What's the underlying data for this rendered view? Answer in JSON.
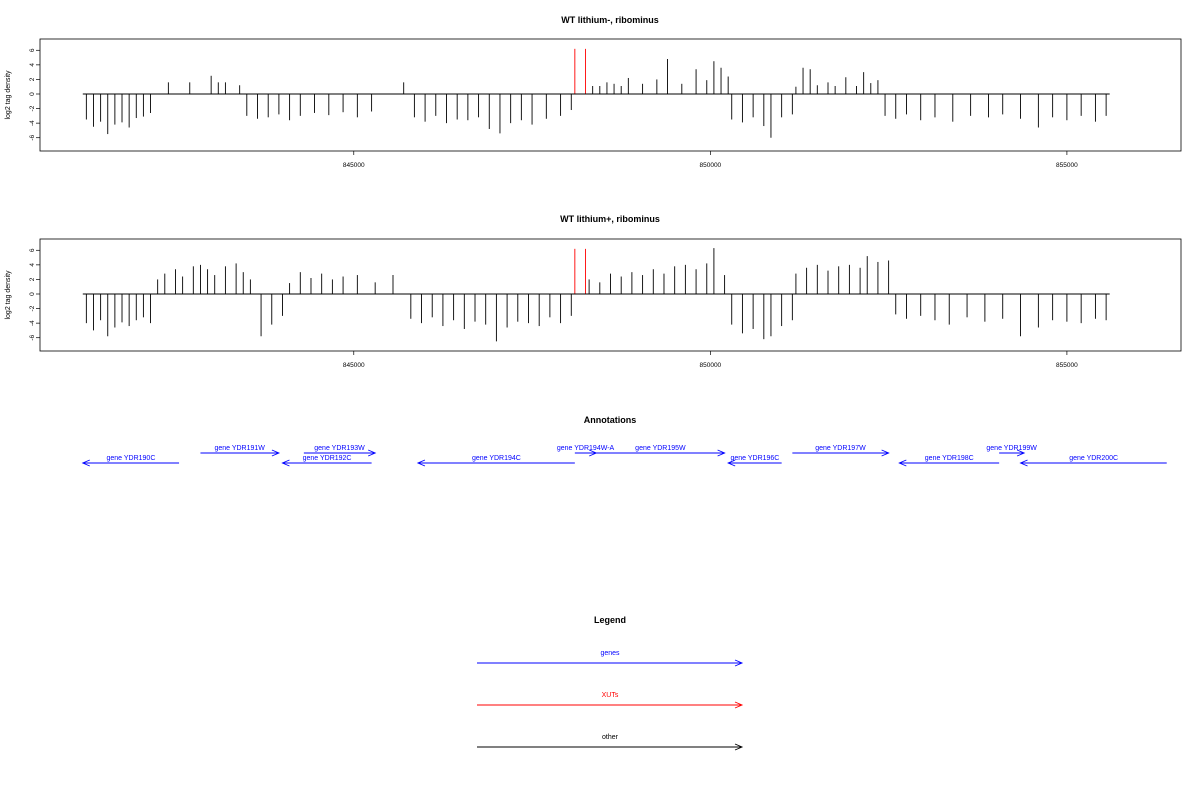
{
  "chart_data": [
    {
      "type": "bar",
      "title": "WT lithium-, ribominus",
      "ylabel": "log2 tag density",
      "xlim": [
        840600,
        856600
      ],
      "ylim": [
        -7,
        7
      ],
      "yticks": [
        6,
        4,
        2,
        0,
        -2,
        -4,
        -6
      ],
      "xticks": [
        845000,
        850000,
        855000
      ],
      "xtick_labels": [
        "845000",
        "850000",
        "855000"
      ],
      "baseline_range": [
        841200,
        855600
      ],
      "series": [
        {
          "color": "#000000",
          "points": [
            [
              841250,
              -3.5
            ],
            [
              841350,
              -4.5
            ],
            [
              841450,
              -3.8
            ],
            [
              841550,
              -5.5
            ],
            [
              841650,
              -4.2
            ],
            [
              841750,
              -3.9
            ],
            [
              841850,
              -4.6
            ],
            [
              841950,
              -3.3
            ],
            [
              842050,
              -3.1
            ],
            [
              842150,
              -2.6
            ],
            [
              842400,
              1.6
            ],
            [
              842700,
              1.6
            ],
            [
              843000,
              2.5
            ],
            [
              843100,
              1.6
            ],
            [
              843200,
              1.6
            ],
            [
              843400,
              1.2
            ],
            [
              843500,
              -3.0
            ],
            [
              843650,
              -3.4
            ],
            [
              843800,
              -3.2
            ],
            [
              843950,
              -2.8
            ],
            [
              844100,
              -3.6
            ],
            [
              844250,
              -3.0
            ],
            [
              844450,
              -2.6
            ],
            [
              844650,
              -2.9
            ],
            [
              844850,
              -2.5
            ],
            [
              845050,
              -3.2
            ],
            [
              845250,
              -2.4
            ],
            [
              845700,
              1.6
            ],
            [
              845850,
              -3.2
            ],
            [
              846000,
              -3.8
            ],
            [
              846150,
              -3.0
            ],
            [
              846300,
              -4.0
            ],
            [
              846450,
              -3.5
            ],
            [
              846600,
              -3.6
            ],
            [
              846750,
              -3.2
            ],
            [
              846900,
              -4.8
            ],
            [
              847050,
              -5.4
            ],
            [
              847200,
              -4.0
            ],
            [
              847350,
              -3.6
            ],
            [
              847500,
              -4.2
            ],
            [
              847700,
              -3.4
            ],
            [
              847900,
              -3.0
            ],
            [
              848050,
              -2.2
            ],
            [
              848350,
              1.1
            ],
            [
              848450,
              1.1
            ],
            [
              848550,
              1.6
            ],
            [
              848650,
              1.4
            ],
            [
              848750,
              1.1
            ],
            [
              848850,
              2.2
            ],
            [
              849050,
              1.4
            ],
            [
              849250,
              2.0
            ],
            [
              849400,
              4.8
            ],
            [
              849600,
              1.4
            ],
            [
              849800,
              3.4
            ],
            [
              849950,
              1.9
            ],
            [
              850050,
              4.5
            ],
            [
              850150,
              3.6
            ],
            [
              850250,
              2.4
            ],
            [
              850300,
              -3.5
            ],
            [
              850450,
              -3.9
            ],
            [
              850600,
              -3.2
            ],
            [
              850750,
              -4.4
            ],
            [
              850850,
              -6.0
            ],
            [
              851000,
              -3.2
            ],
            [
              851150,
              -2.8
            ],
            [
              851200,
              1.0
            ],
            [
              851300,
              3.6
            ],
            [
              851400,
              3.4
            ],
            [
              851500,
              1.2
            ],
            [
              851650,
              1.6
            ],
            [
              851750,
              1.1
            ],
            [
              851900,
              2.3
            ],
            [
              852050,
              1.1
            ],
            [
              852150,
              3.0
            ],
            [
              852250,
              1.5
            ],
            [
              852350,
              1.9
            ],
            [
              852450,
              -3.0
            ],
            [
              852600,
              -3.4
            ],
            [
              852750,
              -2.8
            ],
            [
              852950,
              -3.6
            ],
            [
              853150,
              -3.2
            ],
            [
              853400,
              -3.8
            ],
            [
              853650,
              -3.0
            ],
            [
              853900,
              -3.2
            ],
            [
              854100,
              -2.8
            ],
            [
              854350,
              -3.4
            ],
            [
              854600,
              -4.6
            ],
            [
              854800,
              -3.2
            ],
            [
              855000,
              -3.6
            ],
            [
              855200,
              -3.0
            ],
            [
              855400,
              -3.8
            ],
            [
              855550,
              -3.0
            ]
          ]
        },
        {
          "color": "#ff0000",
          "points": [
            [
              848100,
              6.2
            ],
            [
              848250,
              6.2
            ]
          ]
        }
      ]
    },
    {
      "type": "bar",
      "title": "WT lithium+, ribominus",
      "ylabel": "log2 tag density",
      "xlim": [
        840600,
        856600
      ],
      "ylim": [
        -7,
        7
      ],
      "yticks": [
        6,
        4,
        2,
        0,
        -2,
        -4,
        -6
      ],
      "xticks": [
        845000,
        850000,
        855000
      ],
      "xtick_labels": [
        "845000",
        "850000",
        "855000"
      ],
      "baseline_range": [
        841200,
        855600
      ],
      "series": [
        {
          "color": "#000000",
          "points": [
            [
              841250,
              -4.0
            ],
            [
              841350,
              -5.0
            ],
            [
              841450,
              -3.6
            ],
            [
              841550,
              -5.8
            ],
            [
              841650,
              -4.6
            ],
            [
              841750,
              -3.9
            ],
            [
              841850,
              -4.4
            ],
            [
              841950,
              -3.6
            ],
            [
              842050,
              -3.2
            ],
            [
              842150,
              -4.0
            ],
            [
              842250,
              2.0
            ],
            [
              842350,
              2.8
            ],
            [
              842500,
              3.4
            ],
            [
              842600,
              2.4
            ],
            [
              842750,
              3.8
            ],
            [
              842850,
              4.0
            ],
            [
              842950,
              3.4
            ],
            [
              843050,
              2.6
            ],
            [
              843200,
              3.8
            ],
            [
              843350,
              4.2
            ],
            [
              843450,
              3.0
            ],
            [
              843550,
              2.0
            ],
            [
              843700,
              -5.8
            ],
            [
              843850,
              -4.2
            ],
            [
              844000,
              -3.0
            ],
            [
              844100,
              1.5
            ],
            [
              844250,
              3.0
            ],
            [
              844400,
              2.2
            ],
            [
              844550,
              2.8
            ],
            [
              844700,
              2.0
            ],
            [
              844850,
              2.4
            ],
            [
              845050,
              2.6
            ],
            [
              845300,
              1.6
            ],
            [
              845550,
              2.6
            ],
            [
              845800,
              -3.4
            ],
            [
              845950,
              -4.0
            ],
            [
              846100,
              -3.2
            ],
            [
              846250,
              -4.4
            ],
            [
              846400,
              -3.6
            ],
            [
              846550,
              -4.8
            ],
            [
              846700,
              -3.8
            ],
            [
              846850,
              -4.2
            ],
            [
              847000,
              -6.5
            ],
            [
              847150,
              -4.6
            ],
            [
              847300,
              -3.8
            ],
            [
              847450,
              -4.0
            ],
            [
              847600,
              -4.4
            ],
            [
              847750,
              -3.2
            ],
            [
              847900,
              -4.0
            ],
            [
              848050,
              -3.0
            ],
            [
              848300,
              2.0
            ],
            [
              848450,
              1.6
            ],
            [
              848600,
              2.8
            ],
            [
              848750,
              2.4
            ],
            [
              848900,
              3.0
            ],
            [
              849050,
              2.6
            ],
            [
              849200,
              3.4
            ],
            [
              849350,
              2.8
            ],
            [
              849500,
              3.8
            ],
            [
              849650,
              4.0
            ],
            [
              849800,
              3.4
            ],
            [
              849950,
              4.2
            ],
            [
              850050,
              6.3
            ],
            [
              850200,
              2.6
            ],
            [
              850300,
              -4.2
            ],
            [
              850450,
              -5.4
            ],
            [
              850600,
              -4.8
            ],
            [
              850750,
              -6.2
            ],
            [
              850850,
              -5.8
            ],
            [
              851000,
              -4.4
            ],
            [
              851150,
              -3.6
            ],
            [
              851200,
              2.8
            ],
            [
              851350,
              3.6
            ],
            [
              851500,
              4.0
            ],
            [
              851650,
              3.2
            ],
            [
              851800,
              3.8
            ],
            [
              851950,
              4.0
            ],
            [
              852100,
              3.6
            ],
            [
              852200,
              5.2
            ],
            [
              852350,
              4.4
            ],
            [
              852500,
              4.6
            ],
            [
              852600,
              -2.8
            ],
            [
              852750,
              -3.4
            ],
            [
              852950,
              -3.0
            ],
            [
              853150,
              -3.6
            ],
            [
              853350,
              -4.2
            ],
            [
              853600,
              -3.2
            ],
            [
              853850,
              -3.8
            ],
            [
              854100,
              -3.4
            ],
            [
              854350,
              -5.8
            ],
            [
              854600,
              -4.6
            ],
            [
              854800,
              -3.6
            ],
            [
              855000,
              -3.8
            ],
            [
              855200,
              -4.0
            ],
            [
              855400,
              -3.4
            ],
            [
              855550,
              -3.6
            ]
          ]
        },
        {
          "color": "#ff0000",
          "points": [
            [
              848100,
              6.2
            ],
            [
              848250,
              6.2
            ]
          ]
        }
      ]
    }
  ],
  "annotations": {
    "title": "Annotations",
    "genes": [
      {
        "label": "gene YDR190C",
        "start": 841200,
        "end": 842550,
        "strand": "-",
        "row": 2
      },
      {
        "label": "gene YDR191W",
        "start": 842850,
        "end": 843950,
        "strand": "+",
        "row": 1
      },
      {
        "label": "gene YDR192C",
        "start": 844000,
        "end": 845250,
        "strand": "-",
        "row": 2
      },
      {
        "label": "gene YDR193W",
        "start": 844300,
        "end": 845300,
        "strand": "+",
        "row": 1
      },
      {
        "label": "gene YDR194C",
        "start": 845900,
        "end": 848100,
        "strand": "-",
        "row": 2
      },
      {
        "label": "gene YDR194W-A",
        "start": 848100,
        "end": 848400,
        "strand": "+",
        "row": 1
      },
      {
        "label": "gene YDR195W",
        "start": 848400,
        "end": 850200,
        "strand": "+",
        "row": 1
      },
      {
        "label": "gene YDR196C",
        "start": 850250,
        "end": 851000,
        "strand": "-",
        "row": 2
      },
      {
        "label": "gene YDR197W",
        "start": 851150,
        "end": 852500,
        "strand": "+",
        "row": 1
      },
      {
        "label": "gene YDR198C",
        "start": 852650,
        "end": 854050,
        "strand": "-",
        "row": 2
      },
      {
        "label": "gene YDR199W",
        "start": 854050,
        "end": 854400,
        "strand": "+",
        "row": 1
      },
      {
        "label": "gene YDR200C",
        "start": 854350,
        "end": 856400,
        "strand": "-",
        "row": 2
      }
    ]
  },
  "legend": {
    "title": "Legend",
    "items": [
      {
        "label": "genes",
        "color": "#0000ff"
      },
      {
        "label": "XUTs",
        "color": "#ff0000"
      },
      {
        "label": "other",
        "color": "#000000"
      }
    ]
  }
}
